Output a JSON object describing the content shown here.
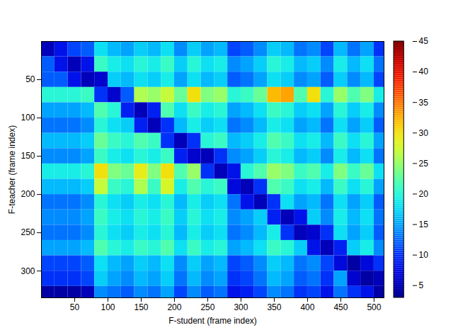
{
  "chart_data": {
    "type": "heatmap",
    "x_label": "F-student (frame index)",
    "y_label": "F-teacher (frame index)",
    "xlim": [
      0,
      515
    ],
    "xticks": [
      50,
      100,
      150,
      200,
      250,
      300,
      350,
      400,
      450,
      500
    ],
    "ylim": [
      0,
      335
    ],
    "yticks": [
      50,
      100,
      150,
      200,
      250,
      300
    ],
    "x_edges": [
      0,
      20,
      40,
      60,
      80,
      100,
      120,
      140,
      160,
      180,
      200,
      220,
      240,
      260,
      280,
      300,
      320,
      340,
      360,
      380,
      400,
      420,
      440,
      460,
      480,
      500,
      520
    ],
    "y_edges": [
      0,
      20,
      40,
      60,
      80,
      100,
      120,
      140,
      160,
      180,
      200,
      220,
      240,
      260,
      280,
      300,
      320,
      340
    ],
    "cells": [
      [
        5,
        8,
        11,
        12,
        18,
        16,
        15,
        17,
        16,
        18,
        14,
        17,
        15,
        16,
        11,
        12,
        14,
        17,
        16,
        13,
        14,
        11,
        16,
        13,
        15,
        10
      ],
      [
        12,
        8,
        5,
        8,
        21,
        19,
        18,
        20,
        19,
        21,
        17,
        20,
        18,
        19,
        14,
        15,
        17,
        20,
        19,
        16,
        17,
        14,
        19,
        16,
        18,
        13
      ],
      [
        12,
        12,
        8,
        5,
        6,
        17,
        16,
        18,
        17,
        19,
        15,
        18,
        16,
        17,
        12,
        13,
        15,
        18,
        17,
        14,
        15,
        12,
        17,
        14,
        16,
        11
      ],
      [
        20,
        20,
        20,
        21,
        10,
        6,
        12,
        26,
        25,
        27,
        23,
        30,
        24,
        25,
        20,
        21,
        23,
        32,
        33,
        22,
        30,
        20,
        25,
        22,
        24,
        19
      ],
      [
        15,
        15,
        15,
        16,
        22,
        20,
        9,
        5,
        9,
        22,
        18,
        21,
        19,
        20,
        15,
        16,
        18,
        21,
        20,
        17,
        18,
        15,
        20,
        17,
        19,
        14
      ],
      [
        13,
        13,
        13,
        14,
        20,
        18,
        17,
        9,
        5,
        10,
        16,
        19,
        17,
        18,
        13,
        14,
        16,
        19,
        18,
        15,
        16,
        13,
        18,
        15,
        17,
        12
      ],
      [
        16,
        16,
        16,
        17,
        23,
        21,
        20,
        22,
        21,
        10,
        5,
        10,
        20,
        21,
        16,
        17,
        19,
        22,
        21,
        18,
        19,
        16,
        21,
        18,
        20,
        15
      ],
      [
        14,
        14,
        14,
        15,
        21,
        19,
        18,
        20,
        19,
        21,
        9,
        6,
        5,
        10,
        14,
        15,
        17,
        20,
        19,
        16,
        17,
        14,
        19,
        16,
        18,
        13
      ],
      [
        19,
        19,
        19,
        20,
        30,
        24,
        23,
        29,
        24,
        30,
        22,
        25,
        10,
        5,
        8,
        20,
        22,
        25,
        24,
        21,
        22,
        19,
        24,
        21,
        23,
        18
      ],
      [
        16,
        16,
        16,
        17,
        27,
        21,
        20,
        26,
        21,
        28,
        19,
        22,
        20,
        21,
        7,
        5,
        10,
        22,
        21,
        18,
        19,
        16,
        21,
        18,
        20,
        15
      ],
      [
        13,
        13,
        13,
        14,
        20,
        18,
        17,
        19,
        18,
        20,
        16,
        19,
        17,
        18,
        13,
        8,
        5,
        10,
        18,
        15,
        16,
        13,
        18,
        15,
        17,
        12
      ],
      [
        14,
        14,
        14,
        15,
        21,
        19,
        18,
        20,
        19,
        21,
        17,
        20,
        18,
        19,
        14,
        15,
        17,
        9,
        5,
        8,
        17,
        14,
        19,
        16,
        18,
        13
      ],
      [
        13,
        13,
        13,
        14,
        20,
        18,
        17,
        19,
        18,
        20,
        16,
        19,
        17,
        18,
        13,
        14,
        16,
        19,
        10,
        5,
        6,
        10,
        18,
        15,
        17,
        12
      ],
      [
        15,
        15,
        15,
        16,
        22,
        20,
        19,
        21,
        20,
        22,
        18,
        21,
        19,
        20,
        15,
        16,
        18,
        21,
        20,
        17,
        8,
        5,
        9,
        17,
        19,
        14
      ],
      [
        11,
        11,
        11,
        12,
        18,
        16,
        15,
        17,
        16,
        18,
        14,
        17,
        15,
        16,
        11,
        12,
        14,
        17,
        16,
        13,
        14,
        11,
        7,
        4,
        7,
        10
      ],
      [
        10,
        10,
        10,
        11,
        17,
        15,
        14,
        16,
        15,
        17,
        13,
        16,
        14,
        15,
        10,
        11,
        13,
        16,
        15,
        12,
        13,
        10,
        15,
        6,
        4,
        5
      ],
      [
        4,
        4,
        4,
        5,
        14,
        13,
        12,
        14,
        13,
        15,
        11,
        14,
        12,
        13,
        8,
        9,
        11,
        14,
        13,
        10,
        11,
        8,
        13,
        10,
        8,
        4
      ]
    ],
    "colorbar_lim": [
      3,
      45
    ],
    "colorbar_ticks": [
      5,
      10,
      15,
      20,
      25,
      30,
      35,
      40,
      45
    ]
  }
}
